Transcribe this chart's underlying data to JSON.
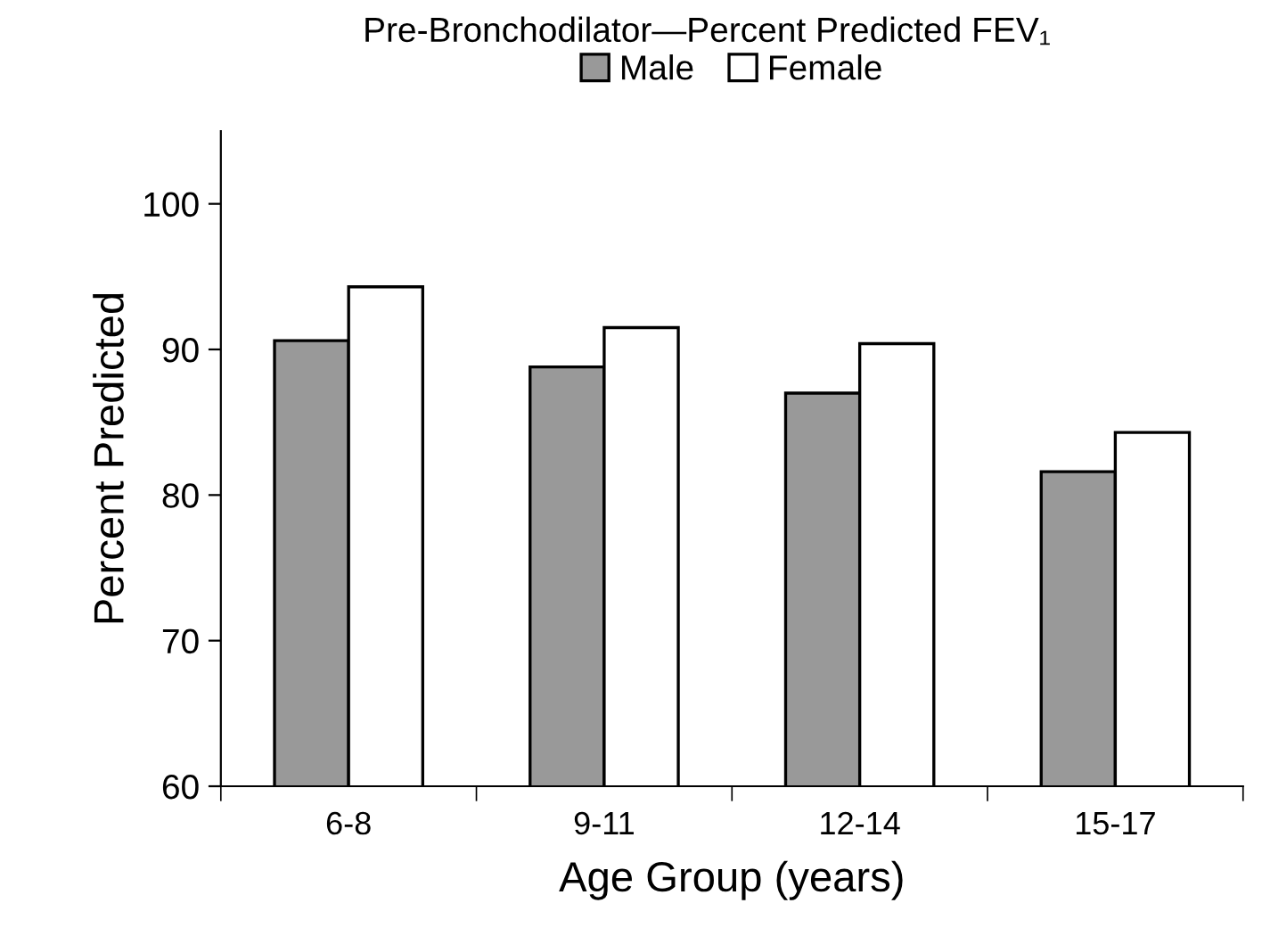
{
  "chart_data": {
    "type": "bar",
    "title": "Pre-Bronchodilator—Percent Predicted FEV₁",
    "xlabel": "Age Group (years)",
    "ylabel": "Percent Predicted",
    "categories": [
      "6-8",
      "9-11",
      "12-14",
      "15-17"
    ],
    "series": [
      {
        "name": "Male",
        "color": "#999999",
        "values": [
          90.6,
          88.8,
          87.0,
          81.6
        ]
      },
      {
        "name": "Female",
        "color": "#ffffff",
        "values": [
          94.3,
          91.5,
          90.4,
          84.3
        ]
      }
    ],
    "ylim": [
      60,
      105
    ],
    "yticks": [
      60,
      70,
      80,
      90,
      100
    ],
    "grid": false,
    "legend": "top"
  }
}
